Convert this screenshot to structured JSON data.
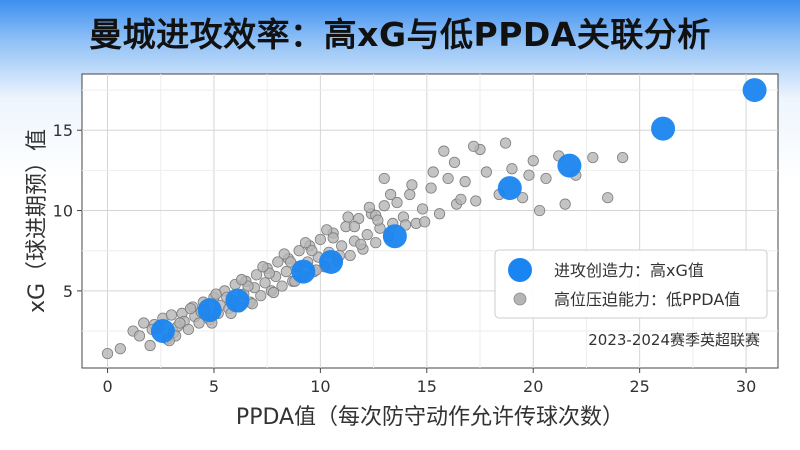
{
  "title": "曼城进攻效率：高xG与低PPDA关联分析",
  "chart_data": {
    "type": "scatter",
    "title": "曼城进攻效率：高xG与低PPDA关联分析",
    "xlabel": "PPDA值（每次防守动作允许传球次数）",
    "ylabel": "xG（球进期预）值",
    "xlim": [
      -1.2,
      31.5
    ],
    "ylim": [
      0.2,
      18.5
    ],
    "xticks": [
      0,
      5,
      10,
      15,
      20,
      25,
      30
    ],
    "yticks": [
      5,
      10,
      15
    ],
    "grid": true,
    "legend_position": "right",
    "annotation": "2023-2024赛季英超联赛",
    "series": [
      {
        "name": "进攻创造力：高xG值",
        "color": "#1a85f0",
        "x": [
          2.6,
          4.8,
          6.1,
          9.2,
          10.5,
          13.5,
          18.9,
          21.7,
          26.1,
          30.4
        ],
        "y": [
          2.5,
          3.8,
          4.4,
          6.2,
          6.8,
          8.4,
          11.4,
          12.8,
          15.1,
          17.5
        ]
      },
      {
        "name": "高位压迫能力：低PPDA值",
        "color": "#b5b5b5",
        "x": [
          0.0,
          0.6,
          1.2,
          1.5,
          1.7,
          2.0,
          2.2,
          2.4,
          2.6,
          2.8,
          3.0,
          3.1,
          3.3,
          3.5,
          3.6,
          3.8,
          4.0,
          4.1,
          4.3,
          4.5,
          4.6,
          4.8,
          5.0,
          5.2,
          5.3,
          5.5,
          5.7,
          5.9,
          6.0,
          6.2,
          6.4,
          6.5,
          6.7,
          6.9,
          7.0,
          7.2,
          7.4,
          7.5,
          7.7,
          7.9,
          8.0,
          8.2,
          8.4,
          8.5,
          8.7,
          8.9,
          9.0,
          9.2,
          9.4,
          9.5,
          9.7,
          9.9,
          10.0,
          10.2,
          10.4,
          10.6,
          10.8,
          11.0,
          11.2,
          11.4,
          11.6,
          11.8,
          12.0,
          12.2,
          12.4,
          12.6,
          12.8,
          13.0,
          13.2,
          13.4,
          13.6,
          13.9,
          14.2,
          14.5,
          14.8,
          15.2,
          15.6,
          16.0,
          16.4,
          16.8,
          17.3,
          17.8,
          18.4,
          19.0,
          19.5,
          20.0,
          20.6,
          21.2,
          22.0,
          22.8,
          3.4,
          4.4,
          5.6,
          6.6,
          7.6,
          8.6,
          9.6,
          10.6,
          11.6,
          12.6,
          2.1,
          3.9,
          5.1,
          6.3,
          7.3,
          8.3,
          9.3,
          10.3,
          11.3,
          12.3,
          13.3,
          14.3,
          15.3,
          16.3,
          17.5,
          18.7,
          20.3,
          21.5,
          23.5,
          3.2,
          5.8,
          7.8,
          9.8,
          11.9,
          14.0,
          16.6,
          19.8,
          24.2,
          13.0,
          15.8,
          17.2,
          12.7,
          14.9,
          10.9,
          8.8,
          6.8,
          4.9,
          2.9
        ],
        "y": [
          1.1,
          1.4,
          2.5,
          2.2,
          3.0,
          1.6,
          2.9,
          2.7,
          3.3,
          2.0,
          3.5,
          2.4,
          2.8,
          3.6,
          3.1,
          2.6,
          4.0,
          3.4,
          3.0,
          4.3,
          3.8,
          3.2,
          4.6,
          3.6,
          4.1,
          5.0,
          3.9,
          4.4,
          5.4,
          4.0,
          4.8,
          5.6,
          4.3,
          5.2,
          6.0,
          4.7,
          5.5,
          6.4,
          5.0,
          5.9,
          6.8,
          5.3,
          6.2,
          7.0,
          5.6,
          6.5,
          7.5,
          5.9,
          6.8,
          7.8,
          6.2,
          7.1,
          8.2,
          6.5,
          7.4,
          8.6,
          6.9,
          7.8,
          9.0,
          7.2,
          8.1,
          9.5,
          7.6,
          8.5,
          9.8,
          8.0,
          8.9,
          10.3,
          8.4,
          9.2,
          10.5,
          9.6,
          11.0,
          9.2,
          10.1,
          11.4,
          9.8,
          12.0,
          10.4,
          11.8,
          10.6,
          12.4,
          11.0,
          12.6,
          10.8,
          13.1,
          12.0,
          13.4,
          12.2,
          13.3,
          3.0,
          3.7,
          4.6,
          5.3,
          6.1,
          6.8,
          7.5,
          8.3,
          9.0,
          9.7,
          2.6,
          3.9,
          4.8,
          5.7,
          6.5,
          7.3,
          8.0,
          8.8,
          9.6,
          10.2,
          11.0,
          11.6,
          12.4,
          13.0,
          13.8,
          14.2,
          10.0,
          10.4,
          10.8,
          2.2,
          3.6,
          4.9,
          6.3,
          7.9,
          9.1,
          10.7,
          12.2,
          13.3,
          12.0,
          13.7,
          14.0,
          9.4,
          9.3,
          7.2,
          5.6,
          4.2,
          3.0,
          1.9
        ]
      }
    ]
  }
}
